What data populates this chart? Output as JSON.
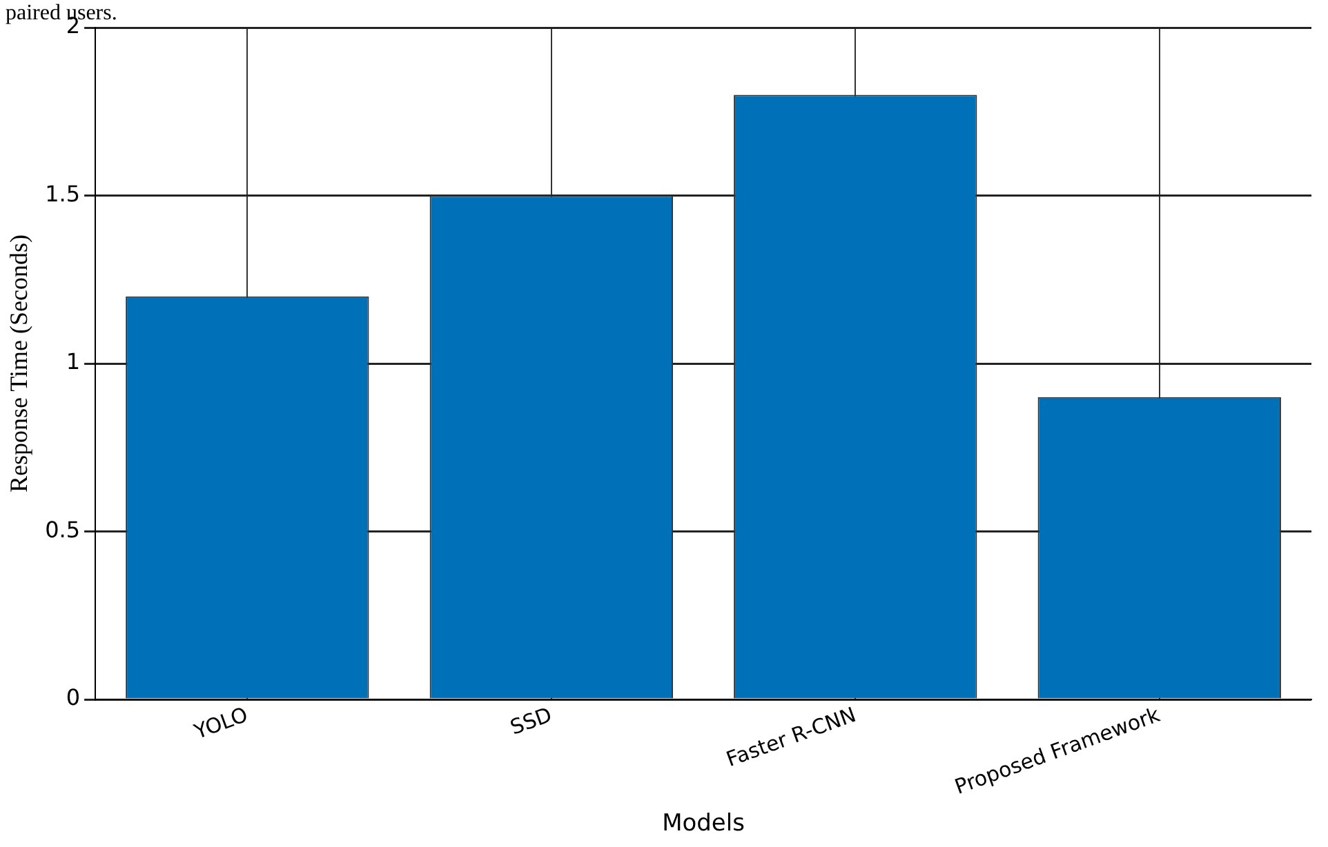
{
  "chart_data": {
    "type": "bar",
    "annotations": [
      "paired users."
    ],
    "xlabel": "Models",
    "ylabel": "Response Time (Seconds)",
    "categories": [
      "YOLO",
      "SSD",
      "Faster R-CNN",
      "Proposed Framework"
    ],
    "values": [
      1.2,
      1.5,
      1.8,
      0.9
    ],
    "color": "#0070b8",
    "ylim": [
      0,
      2
    ],
    "yticks": [
      0,
      0.5,
      1,
      1.5,
      2
    ],
    "grid": true
  }
}
